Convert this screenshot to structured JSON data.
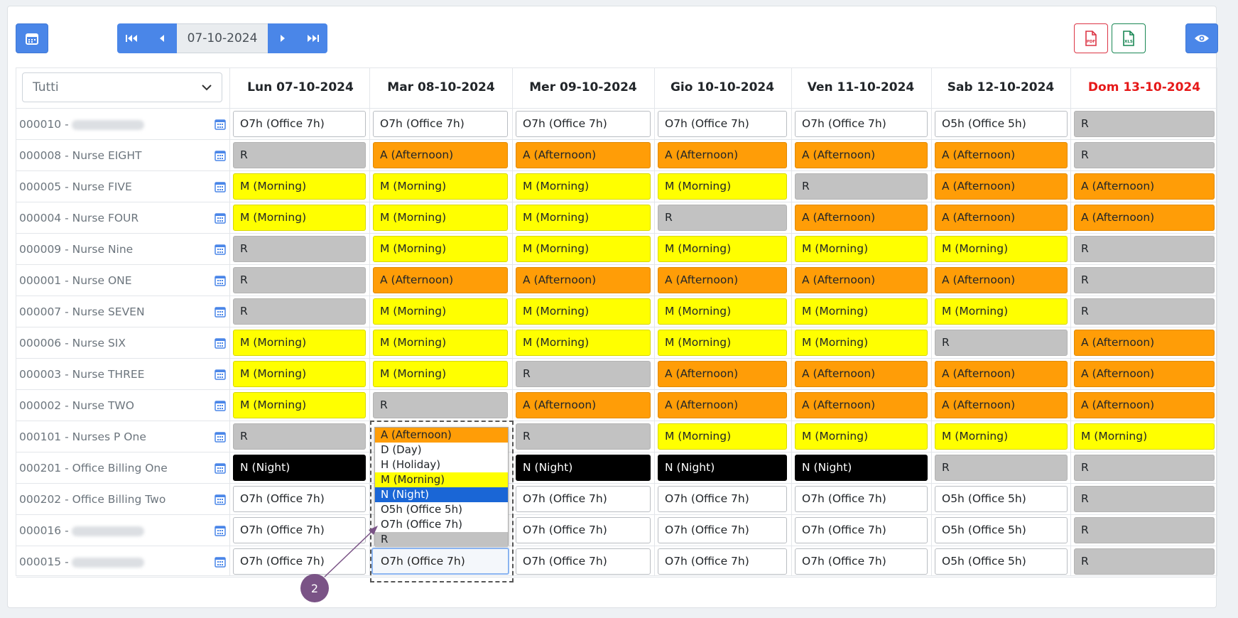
{
  "toolbar": {
    "calendar_icon": "calendar-icon",
    "date": "07-10-2024",
    "nav_icons": [
      "first-icon",
      "prev-icon",
      "next-icon",
      "last-icon"
    ],
    "pdf_label": "PDF",
    "xls_label": "XLS",
    "view_icon": "eye-icon"
  },
  "filter": {
    "selected": "Tutti"
  },
  "days": [
    {
      "label": "Lun 07-10-2024",
      "color": "#212529"
    },
    {
      "label": "Mar 08-10-2024",
      "color": "#212529"
    },
    {
      "label": "Mer 09-10-2024",
      "color": "#212529"
    },
    {
      "label": "Gio 10-10-2024",
      "color": "#212529"
    },
    {
      "label": "Ven 11-10-2024",
      "color": "#212529"
    },
    {
      "label": "Sab 12-10-2024",
      "color": "#212529"
    },
    {
      "label": "Dom 13-10-2024",
      "color": "#e61919"
    }
  ],
  "shift_types": {
    "O7h": "O7h (Office 7h)",
    "O5h": "O5h (Office 5h)",
    "R": "R",
    "A": "A (Afternoon)",
    "M": "M (Morning)",
    "N": "N (Night)"
  },
  "rows": [
    {
      "code": "000010 -",
      "name": "",
      "blurred": true,
      "shifts": [
        "O7h",
        "O7h",
        "O7h",
        "O7h",
        "O7h",
        "O5h",
        "R"
      ]
    },
    {
      "code": "000008 - Nurse EIGHT",
      "name": "",
      "blurred": false,
      "shifts": [
        "R",
        "A",
        "A",
        "A",
        "A",
        "A",
        "R"
      ]
    },
    {
      "code": "000005 - Nurse FIVE",
      "name": "",
      "blurred": false,
      "shifts": [
        "M",
        "M",
        "M",
        "M",
        "R",
        "A",
        "A"
      ]
    },
    {
      "code": "000004 - Nurse FOUR",
      "name": "",
      "blurred": false,
      "shifts": [
        "M",
        "M",
        "M",
        "R",
        "A",
        "A",
        "A"
      ]
    },
    {
      "code": "000009 - Nurse Nine",
      "name": "",
      "blurred": false,
      "shifts": [
        "R",
        "M",
        "M",
        "M",
        "M",
        "M",
        "R"
      ]
    },
    {
      "code": "000001 - Nurse ONE",
      "name": "",
      "blurred": false,
      "shifts": [
        "R",
        "A",
        "A",
        "A",
        "A",
        "A",
        "R"
      ]
    },
    {
      "code": "000007 - Nurse SEVEN",
      "name": "",
      "blurred": false,
      "shifts": [
        "R",
        "M",
        "M",
        "M",
        "M",
        "M",
        "R"
      ]
    },
    {
      "code": "000006 - Nurse SIX",
      "name": "",
      "blurred": false,
      "shifts": [
        "M",
        "M",
        "M",
        "M",
        "M",
        "R",
        "A"
      ]
    },
    {
      "code": "000003 - Nurse THREE",
      "name": "",
      "blurred": false,
      "shifts": [
        "M",
        "M",
        "R",
        "A",
        "A",
        "A",
        "A"
      ]
    },
    {
      "code": "000002 - Nurse TWO",
      "name": "",
      "blurred": false,
      "shifts": [
        "M",
        "R",
        "A",
        "A",
        "A",
        "A",
        "A"
      ]
    },
    {
      "code": "000101 - Nurses P One",
      "name": "",
      "blurred": false,
      "shifts": [
        "R",
        "",
        "R",
        "M",
        "M",
        "M",
        "M"
      ]
    },
    {
      "code": "000201 - Office Billing One",
      "name": "",
      "blurred": false,
      "shifts": [
        "N",
        "",
        "N",
        "N",
        "N",
        "R",
        "R"
      ]
    },
    {
      "code": "000202 - Office Billing Two",
      "name": "",
      "blurred": false,
      "shifts": [
        "O7h",
        "",
        "O7h",
        "O7h",
        "O7h",
        "O5h",
        "R"
      ]
    },
    {
      "code": "000016 -",
      "name": "",
      "blurred": true,
      "shifts": [
        "O7h",
        "",
        "O7h",
        "O7h",
        "O7h",
        "O5h",
        "R"
      ]
    },
    {
      "code": "000015 -",
      "name": "",
      "blurred": true,
      "shifts": [
        "O7h",
        "",
        "O7h",
        "O7h",
        "O7h",
        "O5h",
        "R"
      ]
    }
  ],
  "dropdown": {
    "options": [
      {
        "label": "A (Afternoon)",
        "type": "A"
      },
      {
        "label": "D (Day)",
        "type": ""
      },
      {
        "label": "H (Holiday)",
        "type": ""
      },
      {
        "label": "M (Morning)",
        "type": "M"
      },
      {
        "label": "N (Night)",
        "type": "sel"
      },
      {
        "label": "O5h (Office 5h)",
        "type": ""
      },
      {
        "label": "O7h (Office 7h)",
        "type": ""
      },
      {
        "label": "R",
        "type": "R"
      }
    ],
    "current_value": "O7h (Office 7h)"
  },
  "annotation": {
    "marker": "2"
  }
}
